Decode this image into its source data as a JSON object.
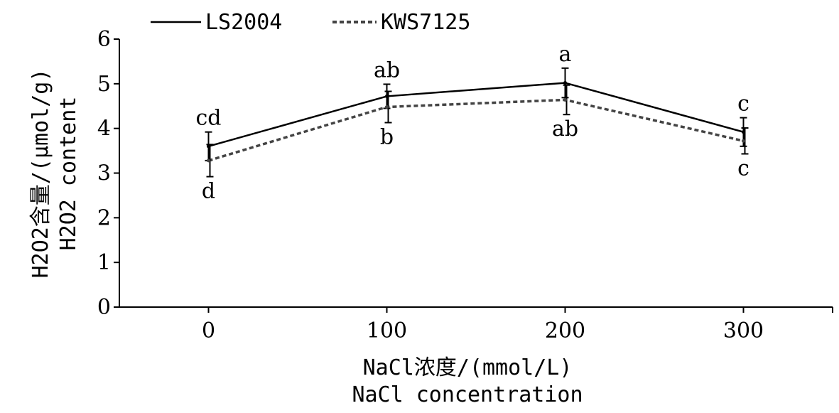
{
  "chart_data": {
    "type": "line",
    "categories": [
      "0",
      "100",
      "200",
      "300"
    ],
    "x": [
      0,
      100,
      200,
      300
    ],
    "series": [
      {
        "name": "LS2004",
        "values": [
          3.6,
          4.72,
          5.02,
          3.92
        ],
        "error": [
          0.32,
          0.27,
          0.33,
          0.32
        ],
        "labels": [
          "cd",
          "ab",
          "a",
          "c"
        ],
        "label_position": "above",
        "line_style": "solid",
        "color": "#000000"
      },
      {
        "name": "KWS7125",
        "values": [
          3.28,
          4.48,
          4.64,
          3.72
        ],
        "error": [
          0.36,
          0.35,
          0.33,
          0.29
        ],
        "labels": [
          "d",
          "b",
          "ab",
          "c"
        ],
        "label_position": "below",
        "line_style": "dashed",
        "color": "#444444"
      }
    ],
    "xlim": [
      -50,
      350
    ],
    "ylim": [
      0,
      6
    ],
    "yticks": [
      "0",
      "1",
      "2",
      "3",
      "4",
      "5",
      "6"
    ],
    "xlabel": "NaCl浓度/(mmol/L)",
    "xlabel2": "NaCl concentration",
    "ylabel": "H2O2含量/(μmol/g)",
    "ylabel2": "H2O2 content",
    "legend_position": "top-left",
    "grid": false
  }
}
